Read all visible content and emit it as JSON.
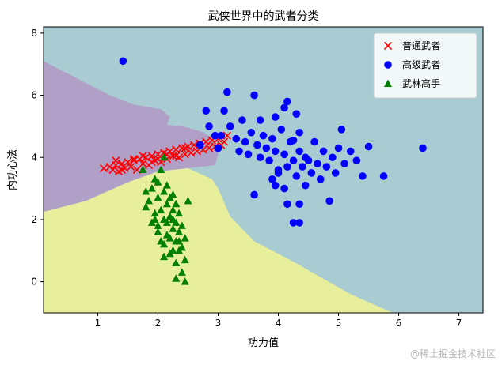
{
  "chart_data": {
    "type": "scatter",
    "title": "武侠世界中的武者分类",
    "xlabel": "功力值",
    "ylabel": "内功心法",
    "xlim": [
      0.1,
      7.4
    ],
    "ylim": [
      -1,
      8.2
    ],
    "xticks": [
      1,
      2,
      3,
      4,
      5,
      6,
      7
    ],
    "yticks": [
      0,
      2,
      4,
      6,
      8
    ],
    "legend_position": "top-right",
    "background_regions": [
      {
        "class": "武林高手",
        "color": "#e8ef9c"
      },
      {
        "class": "普通武者",
        "color": "#b0a0c8"
      },
      {
        "class": "高级武者",
        "color": "#a9ccd2"
      }
    ],
    "series": [
      {
        "name": "普通武者",
        "marker": "x",
        "color": "#ff0000",
        "points": [
          [
            1.1,
            3.65
          ],
          [
            1.2,
            3.7
          ],
          [
            1.25,
            3.6
          ],
          [
            1.3,
            3.75
          ],
          [
            1.35,
            3.55
          ],
          [
            1.4,
            3.8
          ],
          [
            1.45,
            3.65
          ],
          [
            1.5,
            3.85
          ],
          [
            1.55,
            3.7
          ],
          [
            1.6,
            3.9
          ],
          [
            1.65,
            3.6
          ],
          [
            1.7,
            3.95
          ],
          [
            1.75,
            3.8
          ],
          [
            1.8,
            4.0
          ],
          [
            1.85,
            3.75
          ],
          [
            1.9,
            4.05
          ],
          [
            1.95,
            3.9
          ],
          [
            2.0,
            4.1
          ],
          [
            2.05,
            3.85
          ],
          [
            2.1,
            4.15
          ],
          [
            2.15,
            3.95
          ],
          [
            2.2,
            4.2
          ],
          [
            2.25,
            4.05
          ],
          [
            2.3,
            4.25
          ],
          [
            2.35,
            4.0
          ],
          [
            2.4,
            4.3
          ],
          [
            2.45,
            4.1
          ],
          [
            2.5,
            4.35
          ],
          [
            2.55,
            4.15
          ],
          [
            2.6,
            4.4
          ],
          [
            2.65,
            4.2
          ],
          [
            2.7,
            4.45
          ],
          [
            2.75,
            4.25
          ],
          [
            2.8,
            4.5
          ],
          [
            2.85,
            4.3
          ],
          [
            2.9,
            4.55
          ],
          [
            2.95,
            4.35
          ],
          [
            3.0,
            4.6
          ],
          [
            3.05,
            4.4
          ],
          [
            3.1,
            4.5
          ],
          [
            3.15,
            4.7
          ],
          [
            1.6,
            3.95
          ],
          [
            1.75,
            4.05
          ],
          [
            1.9,
            3.85
          ],
          [
            2.0,
            3.95
          ],
          [
            2.15,
            4.1
          ],
          [
            2.3,
            4.05
          ],
          [
            2.45,
            4.3
          ],
          [
            1.4,
            3.6
          ],
          [
            1.3,
            3.9
          ]
        ]
      },
      {
        "name": "高级武者",
        "marker": "o",
        "color": "#0000ff",
        "points": [
          [
            1.42,
            7.1
          ],
          [
            6.4,
            4.3
          ],
          [
            3.15,
            6.1
          ],
          [
            3.6,
            6.0
          ],
          [
            4.15,
            5.8
          ],
          [
            2.8,
            5.5
          ],
          [
            3.1,
            5.5
          ],
          [
            3.4,
            5.2
          ],
          [
            3.7,
            5.2
          ],
          [
            3.95,
            5.3
          ],
          [
            4.1,
            5.6
          ],
          [
            4.3,
            5.4
          ],
          [
            4.35,
            4.8
          ],
          [
            5.05,
            4.9
          ],
          [
            5.5,
            4.35
          ],
          [
            2.95,
            4.7
          ],
          [
            3.0,
            4.3
          ],
          [
            3.05,
            4.7
          ],
          [
            3.2,
            5.0
          ],
          [
            3.3,
            4.6
          ],
          [
            3.35,
            4.2
          ],
          [
            3.45,
            4.5
          ],
          [
            3.5,
            4.1
          ],
          [
            3.55,
            4.8
          ],
          [
            3.65,
            4.4
          ],
          [
            3.7,
            4.0
          ],
          [
            3.75,
            4.7
          ],
          [
            3.8,
            4.3
          ],
          [
            3.85,
            3.9
          ],
          [
            3.9,
            4.6
          ],
          [
            3.95,
            4.2
          ],
          [
            4.0,
            3.5
          ],
          [
            4.05,
            4.9
          ],
          [
            4.1,
            4.1
          ],
          [
            4.15,
            3.7
          ],
          [
            4.2,
            4.5
          ],
          [
            4.25,
            3.9
          ],
          [
            4.3,
            3.4
          ],
          [
            4.35,
            4.2
          ],
          [
            4.4,
            3.7
          ],
          [
            4.45,
            3.1
          ],
          [
            4.5,
            3.9
          ],
          [
            4.55,
            3.5
          ],
          [
            4.6,
            4.5
          ],
          [
            4.65,
            3.8
          ],
          [
            4.7,
            3.3
          ],
          [
            4.75,
            4.2
          ],
          [
            4.8,
            3.7
          ],
          [
            4.85,
            2.6
          ],
          [
            4.9,
            4.0
          ],
          [
            4.95,
            3.5
          ],
          [
            5.0,
            4.3
          ],
          [
            5.1,
            3.8
          ],
          [
            5.2,
            4.2
          ],
          [
            5.3,
            3.9
          ],
          [
            5.4,
            3.4
          ],
          [
            3.6,
            2.8
          ],
          [
            4.15,
            2.5
          ],
          [
            4.25,
            1.9
          ],
          [
            4.35,
            2.5
          ],
          [
            4.35,
            1.9
          ],
          [
            4.25,
            4.55
          ],
          [
            3.9,
            3.3
          ],
          [
            3.95,
            3.1
          ],
          [
            4.0,
            3.6
          ],
          [
            2.7,
            4.4
          ],
          [
            2.85,
            5.0
          ],
          [
            4.1,
            3.0
          ],
          [
            5.75,
            3.4
          ],
          [
            4.45,
            4.0
          ]
        ]
      },
      {
        "name": "武林高手",
        "marker": "^",
        "color": "#008000",
        "points": [
          [
            1.75,
            3.6
          ],
          [
            1.8,
            2.9
          ],
          [
            1.8,
            2.4
          ],
          [
            1.85,
            2.6
          ],
          [
            1.9,
            1.9
          ],
          [
            1.9,
            3.0
          ],
          [
            1.95,
            2.2
          ],
          [
            1.95,
            3.3
          ],
          [
            2.0,
            2.7
          ],
          [
            2.0,
            1.6
          ],
          [
            2.05,
            3.6
          ],
          [
            2.05,
            2.3
          ],
          [
            2.1,
            1.2
          ],
          [
            2.1,
            2.9
          ],
          [
            2.1,
            4.0
          ],
          [
            2.15,
            1.9
          ],
          [
            2.15,
            2.5
          ],
          [
            2.15,
            3.1
          ],
          [
            2.2,
            1.4
          ],
          [
            2.2,
            2.1
          ],
          [
            2.2,
            2.7
          ],
          [
            2.25,
            1.0
          ],
          [
            2.25,
            1.7
          ],
          [
            2.25,
            2.3
          ],
          [
            2.3,
            0.6
          ],
          [
            2.3,
            1.3
          ],
          [
            2.3,
            1.9
          ],
          [
            2.3,
            2.5
          ],
          [
            2.35,
            1.0
          ],
          [
            2.35,
            1.6
          ],
          [
            2.35,
            2.2
          ],
          [
            2.4,
            0.3
          ],
          [
            2.4,
            1.8
          ],
          [
            2.45,
            0.7
          ],
          [
            2.45,
            1.4
          ],
          [
            2.5,
            2.6
          ],
          [
            2.45,
            0.0
          ],
          [
            2.0,
            1.8
          ],
          [
            2.1,
            2.0
          ],
          [
            2.05,
            1.3
          ],
          [
            2.0,
            3.2
          ],
          [
            2.15,
            1.5
          ],
          [
            2.25,
            2.0
          ],
          [
            2.35,
            1.3
          ],
          [
            2.2,
            0.9
          ],
          [
            2.3,
            0.1
          ],
          [
            2.25,
            2.8
          ],
          [
            2.4,
            1.1
          ],
          [
            2.1,
            0.8
          ],
          [
            1.95,
            2.0
          ]
        ]
      }
    ]
  },
  "watermark": "@稀土掘金技术社区"
}
